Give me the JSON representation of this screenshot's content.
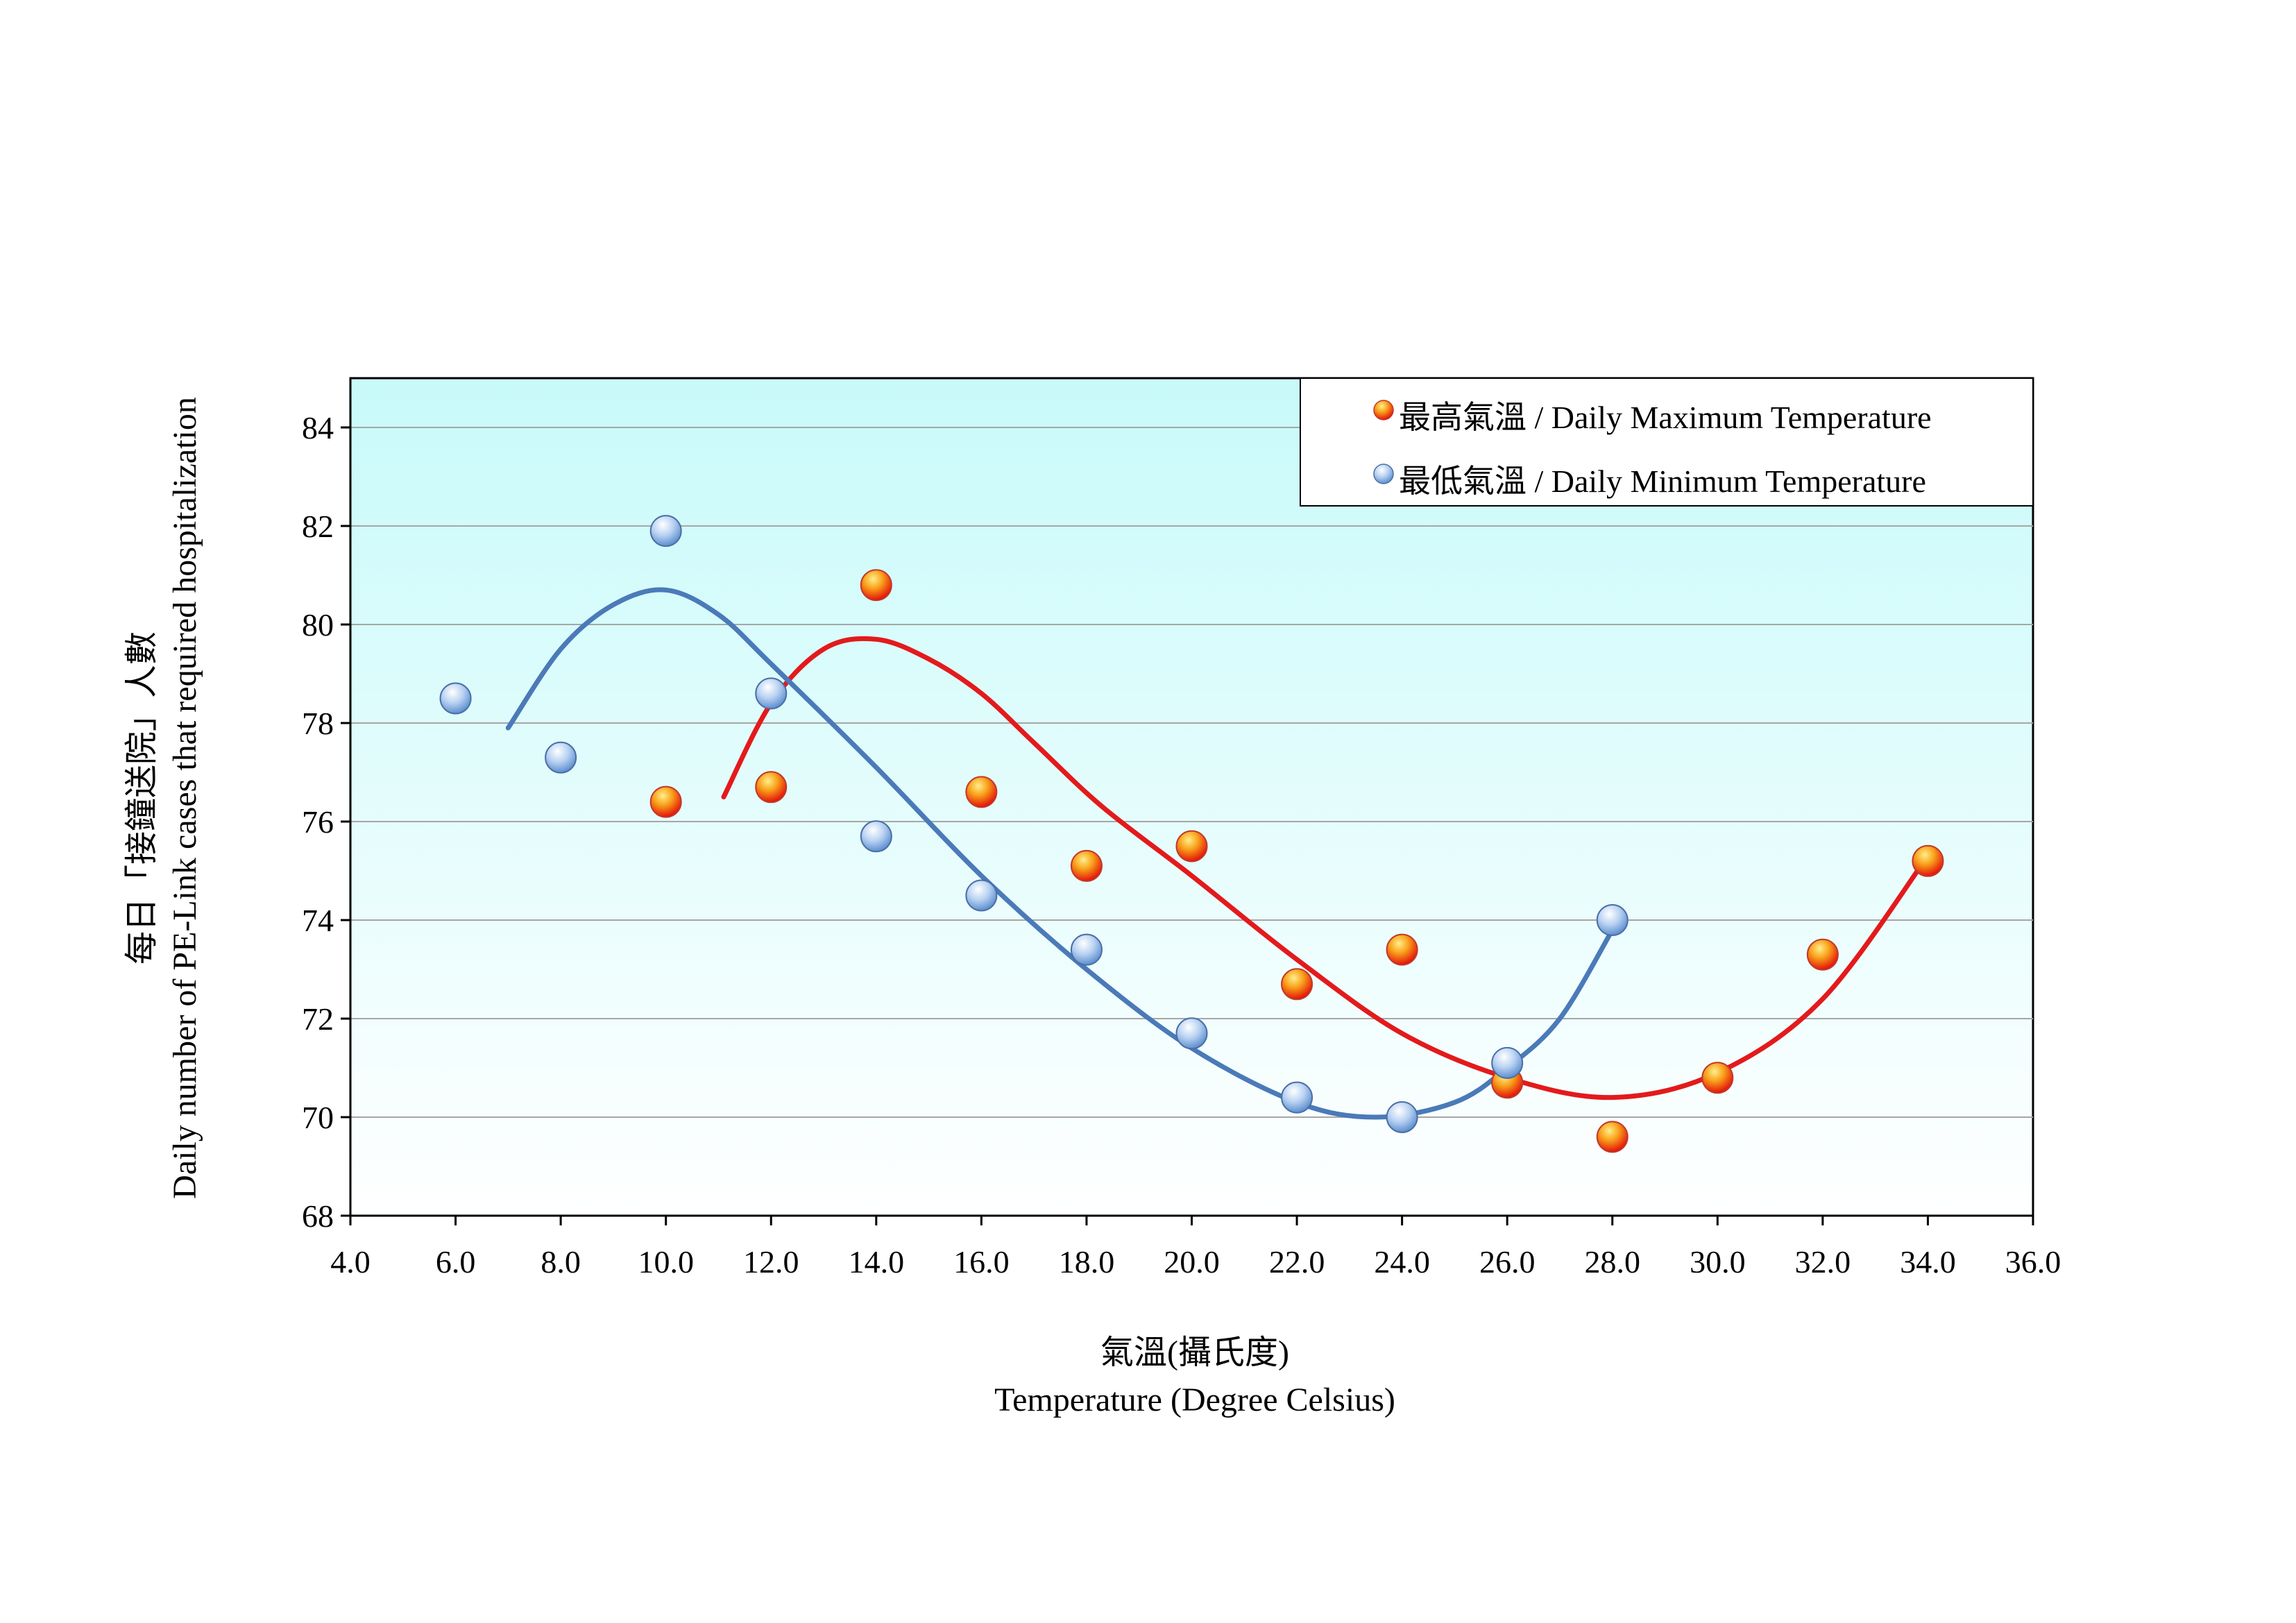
{
  "chart_data": {
    "type": "scatter",
    "title": "",
    "xlabel_zh": "氣溫(攝氏度)",
    "xlabel": "Temperature (Degree Celsius)",
    "ylabel_zh": "每日「接鐘送院」人數",
    "ylabel": "Daily number of PE-Link cases that required hospitalization",
    "xlim": [
      4.0,
      36.0
    ],
    "ylim": [
      68,
      85
    ],
    "x_ticks": [
      "4.0",
      "6.0",
      "8.0",
      "10.0",
      "12.0",
      "14.0",
      "16.0",
      "18.0",
      "20.0",
      "22.0",
      "24.0",
      "26.0",
      "28.0",
      "30.0",
      "32.0",
      "34.0",
      "36.0"
    ],
    "y_ticks": [
      "68",
      "70",
      "72",
      "74",
      "76",
      "78",
      "80",
      "82",
      "84"
    ],
    "grid": "horizontal",
    "legend_position": "top-right",
    "series": [
      {
        "name": "最高氣溫 / Daily Maximum Temperature",
        "color": "#e31a1c",
        "marker": "orange-sphere",
        "points": [
          {
            "x": 10,
            "y": 76.4
          },
          {
            "x": 12,
            "y": 76.7
          },
          {
            "x": 14,
            "y": 80.8
          },
          {
            "x": 16,
            "y": 76.6
          },
          {
            "x": 18,
            "y": 75.1
          },
          {
            "x": 20,
            "y": 75.5
          },
          {
            "x": 22,
            "y": 72.7
          },
          {
            "x": 24,
            "y": 73.4
          },
          {
            "x": 26,
            "y": 70.7
          },
          {
            "x": 28,
            "y": 69.6
          },
          {
            "x": 30,
            "y": 70.8
          },
          {
            "x": 32,
            "y": 73.3
          },
          {
            "x": 34,
            "y": 75.2
          }
        ],
        "trend": [
          {
            "x": 11.1,
            "y": 76.5
          },
          {
            "x": 12.0,
            "y": 78.4
          },
          {
            "x": 13.0,
            "y": 79.5
          },
          {
            "x": 14.0,
            "y": 79.7
          },
          {
            "x": 15.0,
            "y": 79.3
          },
          {
            "x": 16.0,
            "y": 78.6
          },
          {
            "x": 17.0,
            "y": 77.6
          },
          {
            "x": 18.3,
            "y": 76.3
          },
          {
            "x": 20.0,
            "y": 74.9
          },
          {
            "x": 22.0,
            "y": 73.2
          },
          {
            "x": 24.0,
            "y": 71.7
          },
          {
            "x": 26.0,
            "y": 70.8
          },
          {
            "x": 28.0,
            "y": 70.4
          },
          {
            "x": 30.0,
            "y": 70.9
          },
          {
            "x": 32.0,
            "y": 72.4
          },
          {
            "x": 34.0,
            "y": 75.3
          }
        ]
      },
      {
        "name": "最低氣溫 / Daily Minimum Temperature",
        "color": "#4a7ab8",
        "marker": "blue-sphere",
        "points": [
          {
            "x": 6,
            "y": 78.5
          },
          {
            "x": 8,
            "y": 77.3
          },
          {
            "x": 10,
            "y": 81.9
          },
          {
            "x": 12,
            "y": 78.6
          },
          {
            "x": 14,
            "y": 75.7
          },
          {
            "x": 16,
            "y": 74.5
          },
          {
            "x": 18,
            "y": 73.4
          },
          {
            "x": 20,
            "y": 71.7
          },
          {
            "x": 22,
            "y": 70.4
          },
          {
            "x": 24,
            "y": 70.0
          },
          {
            "x": 26,
            "y": 71.1
          },
          {
            "x": 28,
            "y": 74.0
          }
        ],
        "trend": [
          {
            "x": 7.0,
            "y": 77.9
          },
          {
            "x": 8.0,
            "y": 79.5
          },
          {
            "x": 9.0,
            "y": 80.4
          },
          {
            "x": 10.0,
            "y": 80.7
          },
          {
            "x": 11.0,
            "y": 80.2
          },
          {
            "x": 12.0,
            "y": 79.2
          },
          {
            "x": 14.0,
            "y": 77.1
          },
          {
            "x": 16.0,
            "y": 74.9
          },
          {
            "x": 18.0,
            "y": 73.0
          },
          {
            "x": 20.0,
            "y": 71.4
          },
          {
            "x": 22.0,
            "y": 70.3
          },
          {
            "x": 23.5,
            "y": 70.0
          },
          {
            "x": 25.0,
            "y": 70.3
          },
          {
            "x": 26.0,
            "y": 71.0
          },
          {
            "x": 27.0,
            "y": 72.0
          },
          {
            "x": 28.0,
            "y": 73.8
          }
        ]
      }
    ]
  }
}
